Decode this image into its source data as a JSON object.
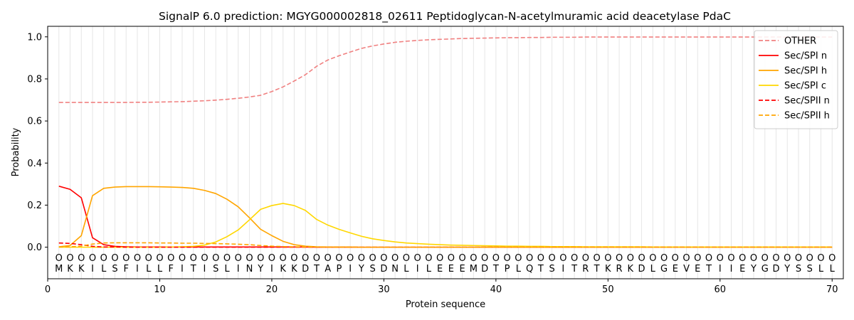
{
  "chart_data": {
    "type": "line",
    "title": "SignalP 6.0 prediction: MGYG000002818_02611 Peptidoglycan-N-acetylmuramic acid deacetylase PdaC",
    "xlabel": "Protein sequence",
    "ylabel": "Probability",
    "xlim": [
      0,
      71
    ],
    "ylim": [
      -0.15,
      1.05
    ],
    "xticks": [
      0,
      10,
      20,
      30,
      40,
      50,
      60,
      70
    ],
    "yticks": [
      0.0,
      0.2,
      0.4,
      0.6,
      0.8,
      1.0
    ],
    "ytick_labels": [
      "0.0",
      "0.2",
      "0.4",
      "0.6",
      "0.8",
      "1.0"
    ],
    "legend_position": "top-right",
    "sequence": [
      "M",
      "K",
      "K",
      "I",
      "L",
      "S",
      "F",
      "I",
      "L",
      "L",
      "F",
      "I",
      "T",
      "I",
      "S",
      "L",
      "I",
      "N",
      "Y",
      "I",
      "K",
      "K",
      "D",
      "T",
      "A",
      "P",
      "I",
      "Y",
      "S",
      "D",
      "N",
      "L",
      "I",
      "L",
      "E",
      "E",
      "E",
      "M",
      "D",
      "T",
      "P",
      "L",
      "Q",
      "T",
      "S",
      "I",
      "T",
      "R",
      "T",
      "K",
      "R",
      "K",
      "D",
      "L",
      "G",
      "E",
      "V",
      "E",
      "T",
      "I",
      "I",
      "E",
      "Y",
      "G",
      "D",
      "Y",
      "S",
      "S",
      "L",
      "L"
    ],
    "region_marker": "O",
    "series": [
      {
        "name": "OTHER",
        "color": "#f08080",
        "dash": true,
        "values": [
          0.688,
          0.688,
          0.688,
          0.688,
          0.688,
          0.688,
          0.688,
          0.689,
          0.689,
          0.69,
          0.691,
          0.692,
          0.694,
          0.696,
          0.699,
          0.703,
          0.708,
          0.714,
          0.722,
          0.74,
          0.762,
          0.79,
          0.82,
          0.86,
          0.89,
          0.91,
          0.928,
          0.945,
          0.957,
          0.966,
          0.974,
          0.979,
          0.983,
          0.986,
          0.988,
          0.99,
          0.992,
          0.993,
          0.994,
          0.995,
          0.996,
          0.996,
          0.997,
          0.997,
          0.998,
          0.998,
          0.998,
          0.999,
          0.999,
          0.999,
          0.999,
          0.999,
          0.999,
          0.999,
          0.999,
          0.999,
          0.999,
          0.999,
          0.999,
          0.999,
          0.999,
          0.999,
          0.999,
          0.999,
          0.999,
          0.999,
          0.999,
          0.999,
          0.999,
          0.999
        ]
      },
      {
        "name": "Sec/SPI n",
        "color": "#ff0000",
        "dash": false,
        "values": [
          0.29,
          0.275,
          0.235,
          0.045,
          0.012,
          0.004,
          0.002,
          0.001,
          0.001,
          0.001,
          0.001,
          0.001,
          0.001,
          0.001,
          0.001,
          0.001,
          0.001,
          0.001,
          0.001,
          0.001,
          0.001,
          0.001,
          0.001,
          0,
          0,
          0,
          0,
          0,
          0,
          0,
          0,
          0,
          0,
          0,
          0,
          0,
          0,
          0,
          0,
          0,
          0,
          0,
          0,
          0,
          0,
          0,
          0,
          0,
          0,
          0,
          0,
          0,
          0,
          0,
          0,
          0,
          0,
          0,
          0,
          0,
          0,
          0,
          0,
          0,
          0,
          0,
          0,
          0,
          0,
          0
        ]
      },
      {
        "name": "Sec/SPI h",
        "color": "#ffa500",
        "dash": false,
        "values": [
          0.002,
          0.008,
          0.055,
          0.245,
          0.28,
          0.286,
          0.288,
          0.288,
          0.288,
          0.287,
          0.286,
          0.284,
          0.28,
          0.27,
          0.255,
          0.228,
          0.192,
          0.14,
          0.085,
          0.055,
          0.028,
          0.012,
          0.005,
          0.002,
          0.001,
          0.001,
          0.001,
          0,
          0,
          0,
          0,
          0,
          0,
          0,
          0,
          0,
          0,
          0,
          0,
          0,
          0,
          0,
          0,
          0,
          0,
          0,
          0,
          0,
          0,
          0,
          0,
          0,
          0,
          0,
          0,
          0,
          0,
          0,
          0,
          0,
          0,
          0,
          0,
          0,
          0,
          0,
          0,
          0,
          0,
          0
        ]
      },
      {
        "name": "Sec/SPI c",
        "color": "#ffd700",
        "dash": false,
        "values": [
          0,
          0,
          0,
          0,
          0,
          0,
          0,
          0,
          0,
          0,
          0.001,
          0.002,
          0.004,
          0.01,
          0.025,
          0.05,
          0.082,
          0.13,
          0.18,
          0.198,
          0.208,
          0.198,
          0.175,
          0.132,
          0.105,
          0.085,
          0.068,
          0.052,
          0.04,
          0.032,
          0.025,
          0.02,
          0.017,
          0.014,
          0.012,
          0.01,
          0.009,
          0.008,
          0.007,
          0.006,
          0.005,
          0.005,
          0.004,
          0.004,
          0.003,
          0.003,
          0.003,
          0.002,
          0.002,
          0.002,
          0.002,
          0.002,
          0.002,
          0.001,
          0.001,
          0.001,
          0.001,
          0.001,
          0.001,
          0.001,
          0.001,
          0.001,
          0.001,
          0.001,
          0.001,
          0.001,
          0.001,
          0.001,
          0.001,
          0.001
        ]
      },
      {
        "name": "Sec/SPII n",
        "color": "#ff0000",
        "dash": true,
        "values": [
          0.02,
          0.018,
          0.012,
          0.004,
          0.001,
          0.001,
          0,
          0,
          0,
          0,
          0,
          0,
          0,
          0,
          0,
          0,
          0,
          0,
          0,
          0,
          0,
          0,
          0,
          0,
          0,
          0,
          0,
          0,
          0,
          0,
          0,
          0,
          0,
          0,
          0,
          0,
          0,
          0,
          0,
          0,
          0,
          0,
          0,
          0,
          0,
          0,
          0,
          0,
          0,
          0,
          0,
          0,
          0,
          0,
          0,
          0,
          0,
          0,
          0,
          0,
          0,
          0,
          0,
          0,
          0,
          0,
          0,
          0,
          0,
          0
        ]
      },
      {
        "name": "Sec/SPII h",
        "color": "#ffa500",
        "dash": true,
        "values": [
          0.001,
          0.002,
          0.005,
          0.015,
          0.02,
          0.021,
          0.021,
          0.021,
          0.021,
          0.02,
          0.02,
          0.019,
          0.019,
          0.018,
          0.017,
          0.016,
          0.014,
          0.012,
          0.008,
          0.005,
          0.003,
          0.002,
          0.001,
          0.001,
          0,
          0,
          0,
          0,
          0,
          0,
          0,
          0,
          0,
          0,
          0,
          0,
          0,
          0,
          0,
          0,
          0,
          0,
          0,
          0,
          0,
          0,
          0,
          0,
          0,
          0,
          0,
          0,
          0,
          0,
          0,
          0,
          0,
          0,
          0,
          0,
          0,
          0,
          0,
          0,
          0,
          0,
          0,
          0,
          0,
          0
        ]
      }
    ]
  }
}
